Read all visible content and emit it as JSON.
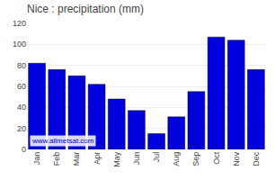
{
  "chart_data": {
    "type": "bar",
    "title": "Nice : precipitation (mm)",
    "categories": [
      "Jan",
      "Feb",
      "Mar",
      "Apr",
      "May",
      "Jun",
      "Jul",
      "Aug",
      "Sep",
      "Oct",
      "Nov",
      "Dec"
    ],
    "values": [
      82,
      76,
      70,
      62,
      48,
      37,
      15,
      31,
      55,
      107,
      104,
      76
    ],
    "color": "#0000dd",
    "ylim": [
      0,
      120
    ],
    "yticks": [
      0,
      20,
      40,
      60,
      80,
      100,
      120
    ],
    "grid": true,
    "annotations": [
      "www.allmetsat.com"
    ]
  }
}
